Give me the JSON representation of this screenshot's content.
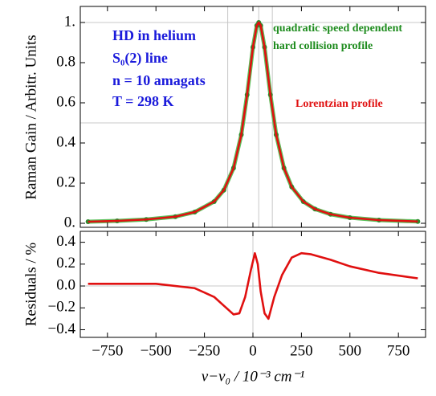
{
  "chart_data": [
    {
      "type": "line",
      "y_label": "Raman Gain / Arbitr. Units",
      "xlim": [
        -890,
        890
      ],
      "ylim": [
        -0.02,
        1.08
      ],
      "xticks": [
        -750,
        -500,
        -250,
        0,
        250,
        500,
        750
      ],
      "yticks": [
        {
          "value": 0,
          "label": "0."
        },
        0.2,
        0.4,
        0.6,
        0.8,
        {
          "value": 1,
          "label": "1."
        }
      ],
      "hlines": [
        0.5,
        1
      ],
      "vlines": [
        -130,
        30,
        100
      ],
      "x": [
        -850,
        -700,
        -550,
        -400,
        -300,
        -200,
        -150,
        -100,
        -60,
        -30,
        0,
        20,
        30,
        40,
        60,
        90,
        120,
        160,
        200,
        260,
        320,
        400,
        500,
        650,
        850
      ],
      "series": [
        {
          "color": "#2e8b2e",
          "marker": true,
          "values": [
            0.008,
            0.012,
            0.019,
            0.033,
            0.056,
            0.108,
            0.165,
            0.275,
            0.441,
            0.64,
            0.877,
            0.985,
            1,
            0.985,
            0.877,
            0.64,
            0.441,
            0.275,
            0.181,
            0.108,
            0.071,
            0.045,
            0.028,
            0.016,
            0.009
          ]
        },
        {
          "color": "#e01010",
          "marker": false,
          "values": [
            0.008,
            0.012,
            0.019,
            0.033,
            0.056,
            0.108,
            0.165,
            0.275,
            0.441,
            0.64,
            0.877,
            0.985,
            1,
            0.985,
            0.877,
            0.64,
            0.441,
            0.275,
            0.181,
            0.108,
            0.071,
            0.045,
            0.028,
            0.016,
            0.009
          ]
        }
      ],
      "annotations": [
        {
          "text": "HD in helium",
          "color": "#1a1adb"
        },
        {
          "text": "S₀(2) line",
          "color": "#1a1adb"
        },
        {
          "text": "n = 10 amagats",
          "color": "#1a1adb"
        },
        {
          "text": "T = 298 K",
          "color": "#1a1adb"
        },
        {
          "text": "quadratic speed dependent",
          "color": "#1e8c1e"
        },
        {
          "text": "hard collision profile",
          "color": "#1e8c1e"
        },
        {
          "text": "Lorentzian profile",
          "color": "#e01010"
        }
      ]
    },
    {
      "type": "line",
      "x_label": "ν−ν₀ / 10⁻³ cm⁻¹",
      "y_label": "Residuals / %",
      "xlim": [
        -890,
        890
      ],
      "ylim": [
        -0.47,
        0.5
      ],
      "xticks": [
        {
          "value": -750,
          "label": "−750"
        },
        {
          "value": -500,
          "label": "−500"
        },
        {
          "value": -250,
          "label": "−250"
        },
        0,
        250,
        500,
        750
      ],
      "yticks": [
        0.4,
        0.2,
        {
          "value": 0,
          "label": "0.0"
        },
        {
          "value": -0.2,
          "label": "−0.2"
        },
        {
          "value": -0.4,
          "label": "−0.4"
        }
      ],
      "hlines": [
        0
      ],
      "vlines": [
        0
      ],
      "x": [
        -850,
        -500,
        -300,
        -200,
        -150,
        -100,
        -70,
        -40,
        -10,
        10,
        25,
        40,
        60,
        80,
        110,
        150,
        200,
        250,
        300,
        400,
        500,
        650,
        850
      ],
      "series": [
        {
          "color": "#e01010",
          "marker": false,
          "values": [
            0.02,
            0.02,
            -0.02,
            -0.1,
            -0.18,
            -0.26,
            -0.25,
            -0.1,
            0.15,
            0.3,
            0.2,
            -0.05,
            -0.25,
            -0.3,
            -0.1,
            0.1,
            0.26,
            0.3,
            0.29,
            0.24,
            0.18,
            0.12,
            0.07
          ]
        }
      ]
    }
  ]
}
